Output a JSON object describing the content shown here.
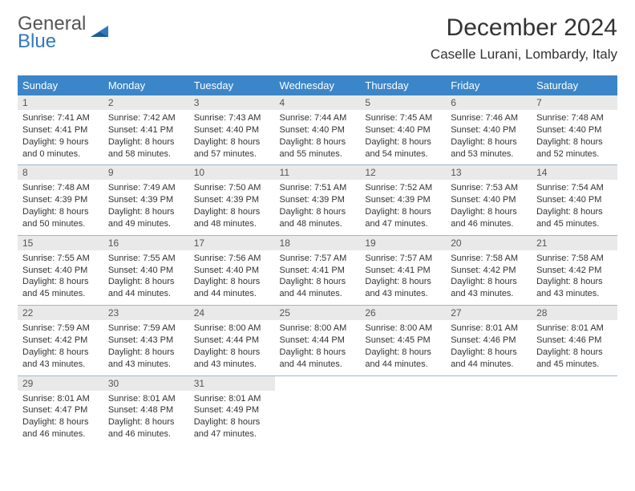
{
  "logo": {
    "general": "General",
    "blue": "Blue"
  },
  "title": "December 2024",
  "location": "Caselle Lurani, Lombardy, Italy",
  "colors": {
    "header_bg": "#3b86c8",
    "header_text": "#ffffff",
    "daynum_bg": "#e9e9e9",
    "row_divider": "#9fb9cf",
    "logo_blue": "#2f79bd",
    "text": "#333333",
    "background": "#ffffff"
  },
  "fonts": {
    "title_size_pt": 22,
    "location_size_pt": 13,
    "header_size_pt": 10,
    "cell_size_pt": 8
  },
  "days_of_week": [
    "Sunday",
    "Monday",
    "Tuesday",
    "Wednesday",
    "Thursday",
    "Friday",
    "Saturday"
  ],
  "weeks": [
    [
      {
        "n": "1",
        "sr": "Sunrise: 7:41 AM",
        "ss": "Sunset: 4:41 PM",
        "dl": "Daylight: 9 hours and 0 minutes."
      },
      {
        "n": "2",
        "sr": "Sunrise: 7:42 AM",
        "ss": "Sunset: 4:41 PM",
        "dl": "Daylight: 8 hours and 58 minutes."
      },
      {
        "n": "3",
        "sr": "Sunrise: 7:43 AM",
        "ss": "Sunset: 4:40 PM",
        "dl": "Daylight: 8 hours and 57 minutes."
      },
      {
        "n": "4",
        "sr": "Sunrise: 7:44 AM",
        "ss": "Sunset: 4:40 PM",
        "dl": "Daylight: 8 hours and 55 minutes."
      },
      {
        "n": "5",
        "sr": "Sunrise: 7:45 AM",
        "ss": "Sunset: 4:40 PM",
        "dl": "Daylight: 8 hours and 54 minutes."
      },
      {
        "n": "6",
        "sr": "Sunrise: 7:46 AM",
        "ss": "Sunset: 4:40 PM",
        "dl": "Daylight: 8 hours and 53 minutes."
      },
      {
        "n": "7",
        "sr": "Sunrise: 7:48 AM",
        "ss": "Sunset: 4:40 PM",
        "dl": "Daylight: 8 hours and 52 minutes."
      }
    ],
    [
      {
        "n": "8",
        "sr": "Sunrise: 7:48 AM",
        "ss": "Sunset: 4:39 PM",
        "dl": "Daylight: 8 hours and 50 minutes."
      },
      {
        "n": "9",
        "sr": "Sunrise: 7:49 AM",
        "ss": "Sunset: 4:39 PM",
        "dl": "Daylight: 8 hours and 49 minutes."
      },
      {
        "n": "10",
        "sr": "Sunrise: 7:50 AM",
        "ss": "Sunset: 4:39 PM",
        "dl": "Daylight: 8 hours and 48 minutes."
      },
      {
        "n": "11",
        "sr": "Sunrise: 7:51 AM",
        "ss": "Sunset: 4:39 PM",
        "dl": "Daylight: 8 hours and 48 minutes."
      },
      {
        "n": "12",
        "sr": "Sunrise: 7:52 AM",
        "ss": "Sunset: 4:39 PM",
        "dl": "Daylight: 8 hours and 47 minutes."
      },
      {
        "n": "13",
        "sr": "Sunrise: 7:53 AM",
        "ss": "Sunset: 4:40 PM",
        "dl": "Daylight: 8 hours and 46 minutes."
      },
      {
        "n": "14",
        "sr": "Sunrise: 7:54 AM",
        "ss": "Sunset: 4:40 PM",
        "dl": "Daylight: 8 hours and 45 minutes."
      }
    ],
    [
      {
        "n": "15",
        "sr": "Sunrise: 7:55 AM",
        "ss": "Sunset: 4:40 PM",
        "dl": "Daylight: 8 hours and 45 minutes."
      },
      {
        "n": "16",
        "sr": "Sunrise: 7:55 AM",
        "ss": "Sunset: 4:40 PM",
        "dl": "Daylight: 8 hours and 44 minutes."
      },
      {
        "n": "17",
        "sr": "Sunrise: 7:56 AM",
        "ss": "Sunset: 4:40 PM",
        "dl": "Daylight: 8 hours and 44 minutes."
      },
      {
        "n": "18",
        "sr": "Sunrise: 7:57 AM",
        "ss": "Sunset: 4:41 PM",
        "dl": "Daylight: 8 hours and 44 minutes."
      },
      {
        "n": "19",
        "sr": "Sunrise: 7:57 AM",
        "ss": "Sunset: 4:41 PM",
        "dl": "Daylight: 8 hours and 43 minutes."
      },
      {
        "n": "20",
        "sr": "Sunrise: 7:58 AM",
        "ss": "Sunset: 4:42 PM",
        "dl": "Daylight: 8 hours and 43 minutes."
      },
      {
        "n": "21",
        "sr": "Sunrise: 7:58 AM",
        "ss": "Sunset: 4:42 PM",
        "dl": "Daylight: 8 hours and 43 minutes."
      }
    ],
    [
      {
        "n": "22",
        "sr": "Sunrise: 7:59 AM",
        "ss": "Sunset: 4:42 PM",
        "dl": "Daylight: 8 hours and 43 minutes."
      },
      {
        "n": "23",
        "sr": "Sunrise: 7:59 AM",
        "ss": "Sunset: 4:43 PM",
        "dl": "Daylight: 8 hours and 43 minutes."
      },
      {
        "n": "24",
        "sr": "Sunrise: 8:00 AM",
        "ss": "Sunset: 4:44 PM",
        "dl": "Daylight: 8 hours and 43 minutes."
      },
      {
        "n": "25",
        "sr": "Sunrise: 8:00 AM",
        "ss": "Sunset: 4:44 PM",
        "dl": "Daylight: 8 hours and 44 minutes."
      },
      {
        "n": "26",
        "sr": "Sunrise: 8:00 AM",
        "ss": "Sunset: 4:45 PM",
        "dl": "Daylight: 8 hours and 44 minutes."
      },
      {
        "n": "27",
        "sr": "Sunrise: 8:01 AM",
        "ss": "Sunset: 4:46 PM",
        "dl": "Daylight: 8 hours and 44 minutes."
      },
      {
        "n": "28",
        "sr": "Sunrise: 8:01 AM",
        "ss": "Sunset: 4:46 PM",
        "dl": "Daylight: 8 hours and 45 minutes."
      }
    ],
    [
      {
        "n": "29",
        "sr": "Sunrise: 8:01 AM",
        "ss": "Sunset: 4:47 PM",
        "dl": "Daylight: 8 hours and 46 minutes."
      },
      {
        "n": "30",
        "sr": "Sunrise: 8:01 AM",
        "ss": "Sunset: 4:48 PM",
        "dl": "Daylight: 8 hours and 46 minutes."
      },
      {
        "n": "31",
        "sr": "Sunrise: 8:01 AM",
        "ss": "Sunset: 4:49 PM",
        "dl": "Daylight: 8 hours and 47 minutes."
      },
      null,
      null,
      null,
      null
    ]
  ]
}
